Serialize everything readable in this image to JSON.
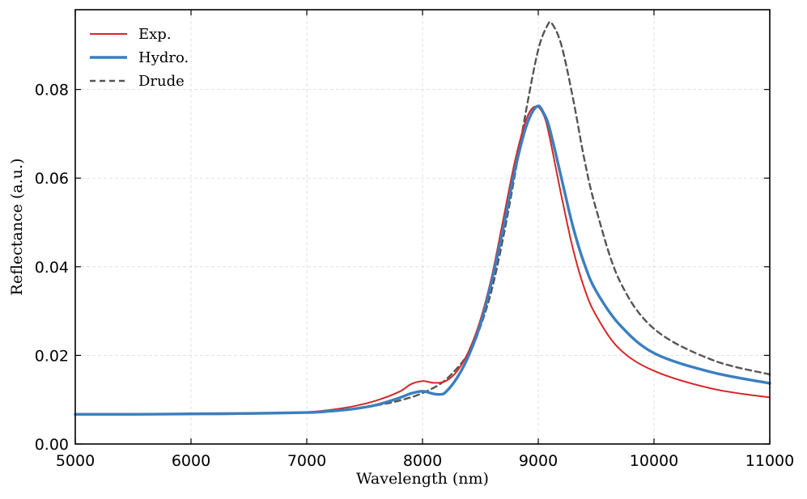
{
  "chart_data": {
    "type": "line",
    "title": "",
    "xlabel": "Wavelength (nm)",
    "ylabel": "Reflectance (a.u.)",
    "xlim": [
      5000,
      11000
    ],
    "ylim": [
      0,
      0.098
    ],
    "grid": true,
    "legend_position": "top-left",
    "x_ticks": [
      5000,
      6000,
      7000,
      8000,
      9000,
      10000,
      11000
    ],
    "x_tick_labels": [
      "5000",
      "6000",
      "7000",
      "8000",
      "9000",
      "10000",
      "11000"
    ],
    "y_ticks": [
      0.0,
      0.02,
      0.04,
      0.06,
      0.08
    ],
    "y_tick_labels": [
      "0.00",
      "0.02",
      "0.04",
      "0.06",
      "0.08"
    ],
    "series": [
      {
        "name": "Exp.",
        "color": "#d62728",
        "style": "solid",
        "points": [
          [
            5000,
            0.0068
          ],
          [
            5500,
            0.0068
          ],
          [
            6000,
            0.0067
          ],
          [
            6500,
            0.0068
          ],
          [
            7000,
            0.0072
          ],
          [
            7200,
            0.0077
          ],
          [
            7400,
            0.0085
          ],
          [
            7600,
            0.0098
          ],
          [
            7800,
            0.0118
          ],
          [
            7900,
            0.0135
          ],
          [
            8000,
            0.0142
          ],
          [
            8100,
            0.0138
          ],
          [
            8200,
            0.0142
          ],
          [
            8300,
            0.0165
          ],
          [
            8400,
            0.021
          ],
          [
            8500,
            0.028
          ],
          [
            8600,
            0.038
          ],
          [
            8700,
            0.051
          ],
          [
            8800,
            0.064
          ],
          [
            8900,
            0.0735
          ],
          [
            8980,
            0.0762
          ],
          [
            9050,
            0.074
          ],
          [
            9100,
            0.069
          ],
          [
            9200,
            0.056
          ],
          [
            9300,
            0.044
          ],
          [
            9400,
            0.035
          ],
          [
            9500,
            0.029
          ],
          [
            9700,
            0.0215
          ],
          [
            10000,
            0.0165
          ],
          [
            10500,
            0.0125
          ],
          [
            11000,
            0.0105
          ]
        ]
      },
      {
        "name": "Hydro.",
        "color": "#3a7fbf",
        "style": "solid",
        "points": [
          [
            5000,
            0.0067
          ],
          [
            5500,
            0.0067
          ],
          [
            6000,
            0.0068
          ],
          [
            6500,
            0.0069
          ],
          [
            7000,
            0.0071
          ],
          [
            7200,
            0.0074
          ],
          [
            7400,
            0.0079
          ],
          [
            7600,
            0.0088
          ],
          [
            7800,
            0.0104
          ],
          [
            7900,
            0.0114
          ],
          [
            8000,
            0.0119
          ],
          [
            8100,
            0.0113
          ],
          [
            8150,
            0.0112
          ],
          [
            8200,
            0.0117
          ],
          [
            8300,
            0.015
          ],
          [
            8400,
            0.02
          ],
          [
            8500,
            0.027
          ],
          [
            8600,
            0.037
          ],
          [
            8700,
            0.049
          ],
          [
            8800,
            0.062
          ],
          [
            8900,
            0.072
          ],
          [
            8990,
            0.0762
          ],
          [
            9050,
            0.0745
          ],
          [
            9100,
            0.071
          ],
          [
            9200,
            0.06
          ],
          [
            9300,
            0.049
          ],
          [
            9400,
            0.0405
          ],
          [
            9500,
            0.0345
          ],
          [
            9700,
            0.027
          ],
          [
            10000,
            0.0205
          ],
          [
            10500,
            0.0162
          ],
          [
            11000,
            0.0137
          ]
        ]
      },
      {
        "name": "Drude",
        "color": "#555555",
        "style": "dashed",
        "points": [
          [
            5000,
            0.0067
          ],
          [
            5500,
            0.0067
          ],
          [
            6000,
            0.0068
          ],
          [
            6500,
            0.0069
          ],
          [
            7000,
            0.0071
          ],
          [
            7200,
            0.0074
          ],
          [
            7400,
            0.0079
          ],
          [
            7600,
            0.0087
          ],
          [
            7800,
            0.0098
          ],
          [
            8000,
            0.0115
          ],
          [
            8200,
            0.0145
          ],
          [
            8400,
            0.0205
          ],
          [
            8500,
            0.0265
          ],
          [
            8600,
            0.035
          ],
          [
            8700,
            0.047
          ],
          [
            8800,
            0.061
          ],
          [
            8900,
            0.076
          ],
          [
            9000,
            0.089
          ],
          [
            9080,
            0.0945
          ],
          [
            9120,
            0.0948
          ],
          [
            9200,
            0.09
          ],
          [
            9300,
            0.078
          ],
          [
            9400,
            0.064
          ],
          [
            9500,
            0.053
          ],
          [
            9700,
            0.037
          ],
          [
            10000,
            0.026
          ],
          [
            10500,
            0.019
          ],
          [
            11000,
            0.0157
          ]
        ]
      }
    ]
  }
}
